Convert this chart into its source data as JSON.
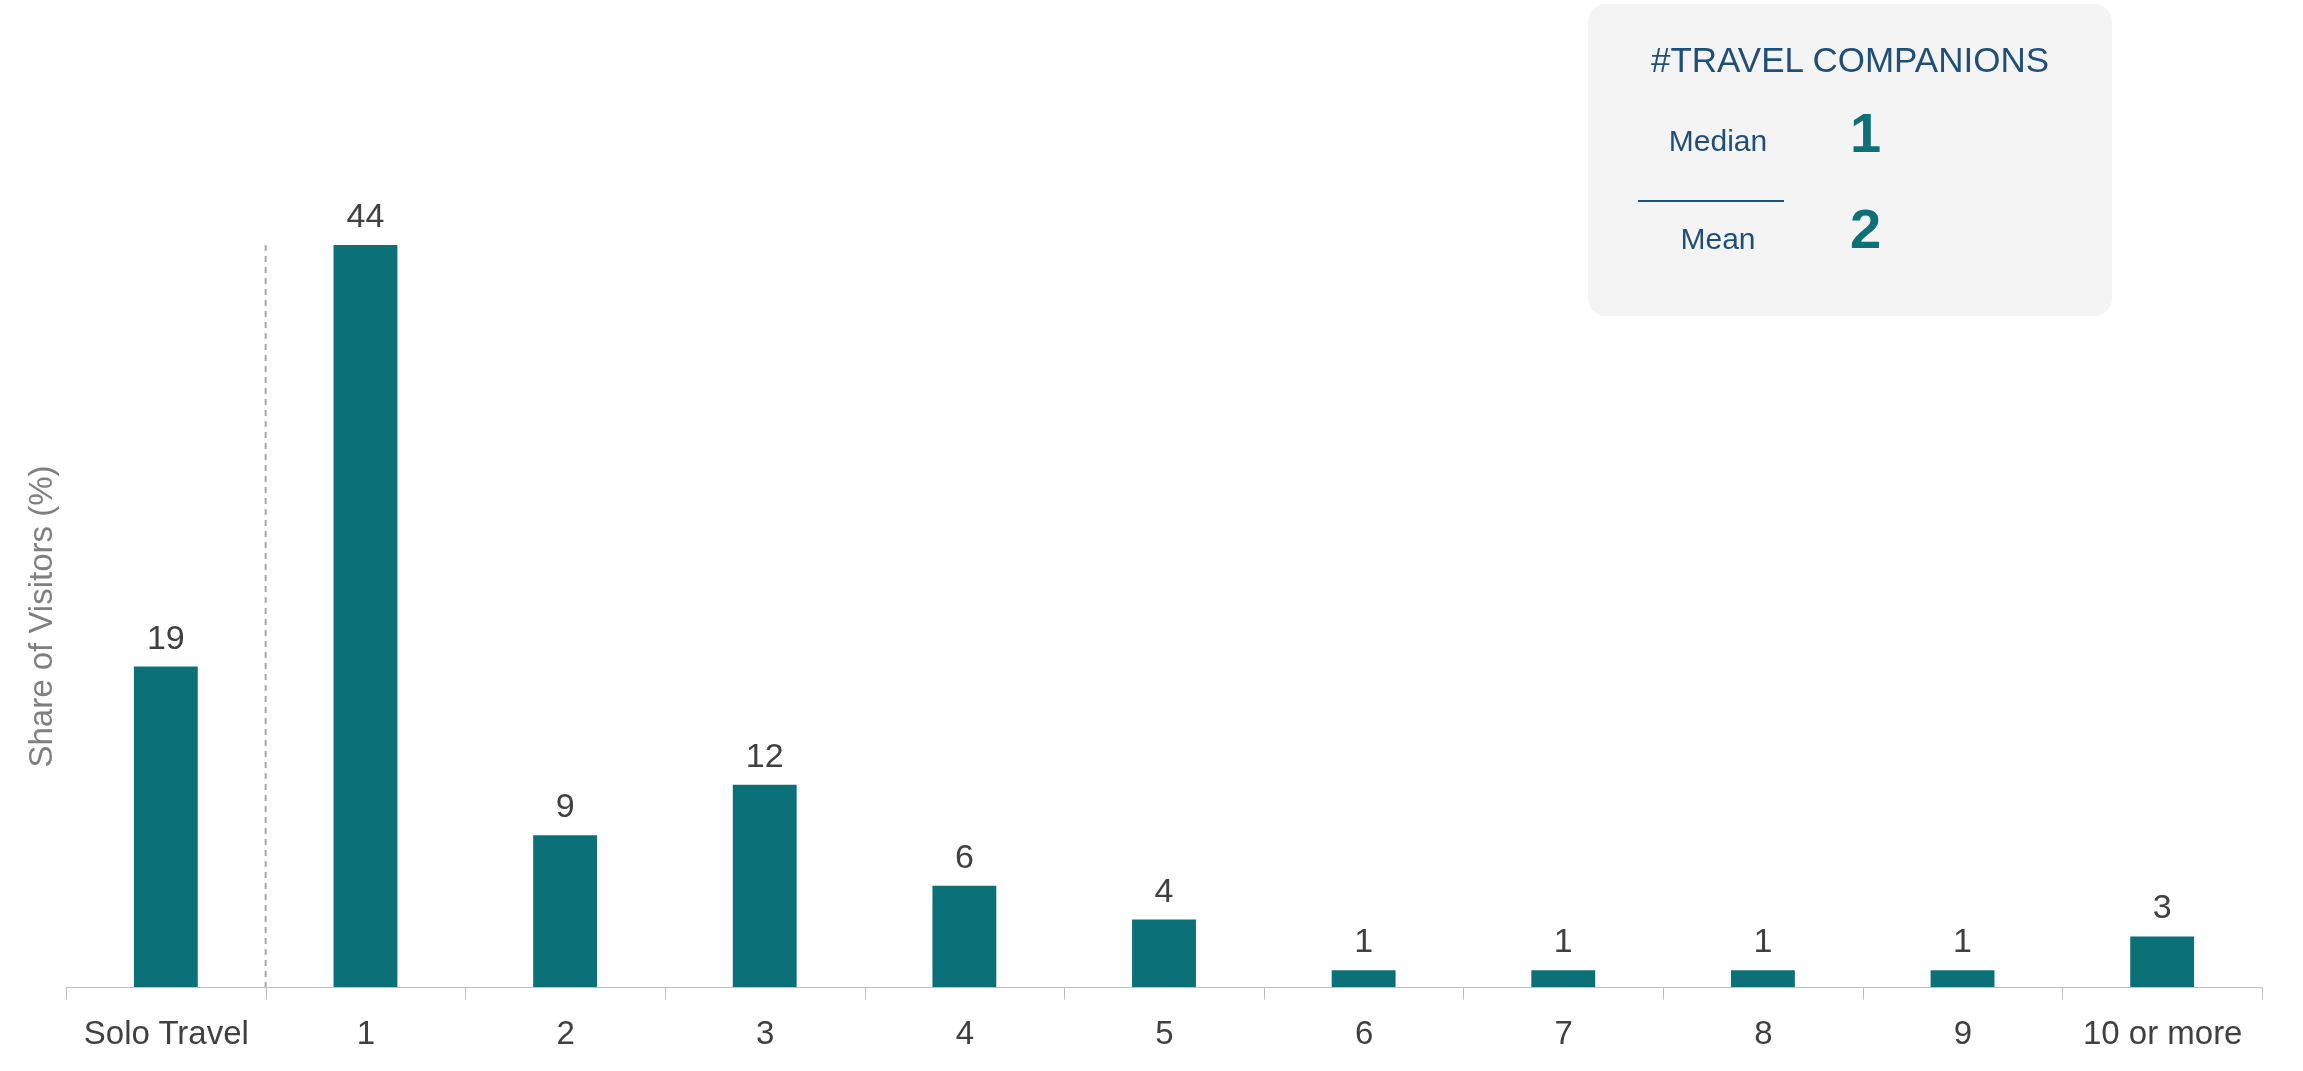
{
  "chart_data": {
    "type": "bar",
    "ylabel": "Share of Visitors (%)",
    "categories": [
      "Solo Travel",
      "1",
      "2",
      "3",
      "4",
      "5",
      "6",
      "7",
      "8",
      "9",
      "10 or more"
    ],
    "values": [
      19,
      44,
      9,
      12,
      6,
      4,
      1,
      1,
      1,
      1,
      3
    ],
    "color": "#0b7078",
    "data_labels": true,
    "grid": false,
    "annotations": [
      "#TRAVEL COMPANIONS",
      "Median",
      "1",
      "Mean",
      "2"
    ]
  }
}
